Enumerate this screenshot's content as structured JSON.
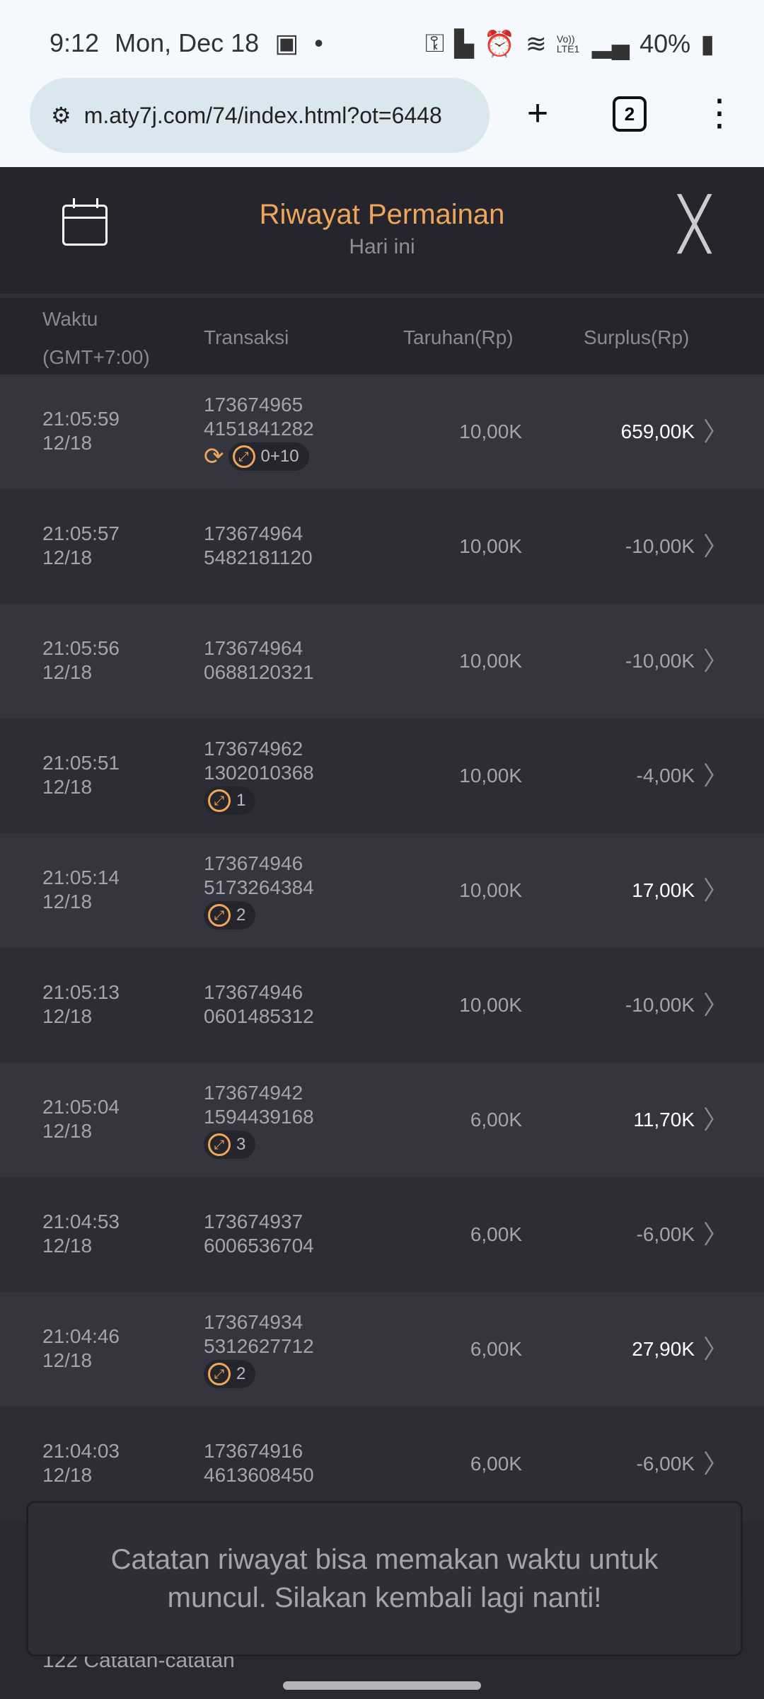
{
  "status_bar": {
    "time": "9:12",
    "date": "Mon, Dec 18",
    "battery": "40%",
    "icons": [
      "image-icon",
      "dot-icon",
      "key-icon",
      "building-icon",
      "alarm-icon",
      "wifi-icon",
      "volte-icon",
      "signal-icon",
      "battery-icon"
    ],
    "volte": "Vo)) LTE1"
  },
  "browser": {
    "url": "m.aty7j.com/74/index.html?ot=6448",
    "tab_count": "2"
  },
  "header": {
    "title": "Riwayat Permainan",
    "subtitle": "Hari ini"
  },
  "columns": {
    "time": "Waktu",
    "timezone": "(GMT+7:00)",
    "transaction": "Transaksi",
    "bet": "Taruhan(Rp)",
    "surplus": "Surplus(Rp)"
  },
  "rows": [
    {
      "time": "21:05:59",
      "date": "12/18",
      "tx1": "173674965",
      "tx2": "4151841282",
      "bet": "10,00K",
      "surplus": "659,00K",
      "positive": true,
      "respin": true,
      "badge": "0+10"
    },
    {
      "time": "21:05:57",
      "date": "12/18",
      "tx1": "173674964",
      "tx2": "5482181120",
      "bet": "10,00K",
      "surplus": "-10,00K",
      "positive": false
    },
    {
      "time": "21:05:56",
      "date": "12/18",
      "tx1": "173674964",
      "tx2": "0688120321",
      "bet": "10,00K",
      "surplus": "-10,00K",
      "positive": false
    },
    {
      "time": "21:05:51",
      "date": "12/18",
      "tx1": "173674962",
      "tx2": "1302010368",
      "bet": "10,00K",
      "surplus": "-4,00K",
      "positive": false,
      "badge": "1"
    },
    {
      "time": "21:05:14",
      "date": "12/18",
      "tx1": "173674946",
      "tx2": "5173264384",
      "bet": "10,00K",
      "surplus": "17,00K",
      "positive": true,
      "badge": "2"
    },
    {
      "time": "21:05:13",
      "date": "12/18",
      "tx1": "173674946",
      "tx2": "0601485312",
      "bet": "10,00K",
      "surplus": "-10,00K",
      "positive": false
    },
    {
      "time": "21:05:04",
      "date": "12/18",
      "tx1": "173674942",
      "tx2": "1594439168",
      "bet": "6,00K",
      "surplus": "11,70K",
      "positive": true,
      "badge": "3"
    },
    {
      "time": "21:04:53",
      "date": "12/18",
      "tx1": "173674937",
      "tx2": "6006536704",
      "bet": "6,00K",
      "surplus": "-6,00K",
      "positive": false
    },
    {
      "time": "21:04:46",
      "date": "12/18",
      "tx1": "173674934",
      "tx2": "5312627712",
      "bet": "6,00K",
      "surplus": "27,90K",
      "positive": true,
      "badge": "2"
    },
    {
      "time": "21:04:03",
      "date": "12/18",
      "tx1": "173674916",
      "tx2": "4613608450",
      "bet": "6,00K",
      "surplus": "-6,00K",
      "positive": false
    }
  ],
  "toast": "Catatan riwayat bisa memakan waktu untuk muncul. Silakan kembali lagi nanti!",
  "footer": {
    "count": "122 Catatan-catatan"
  },
  "colors": {
    "accent": "#f0a658",
    "positive": "#ffffff",
    "row_a": "#35353f",
    "row_b": "#2d2d37"
  }
}
